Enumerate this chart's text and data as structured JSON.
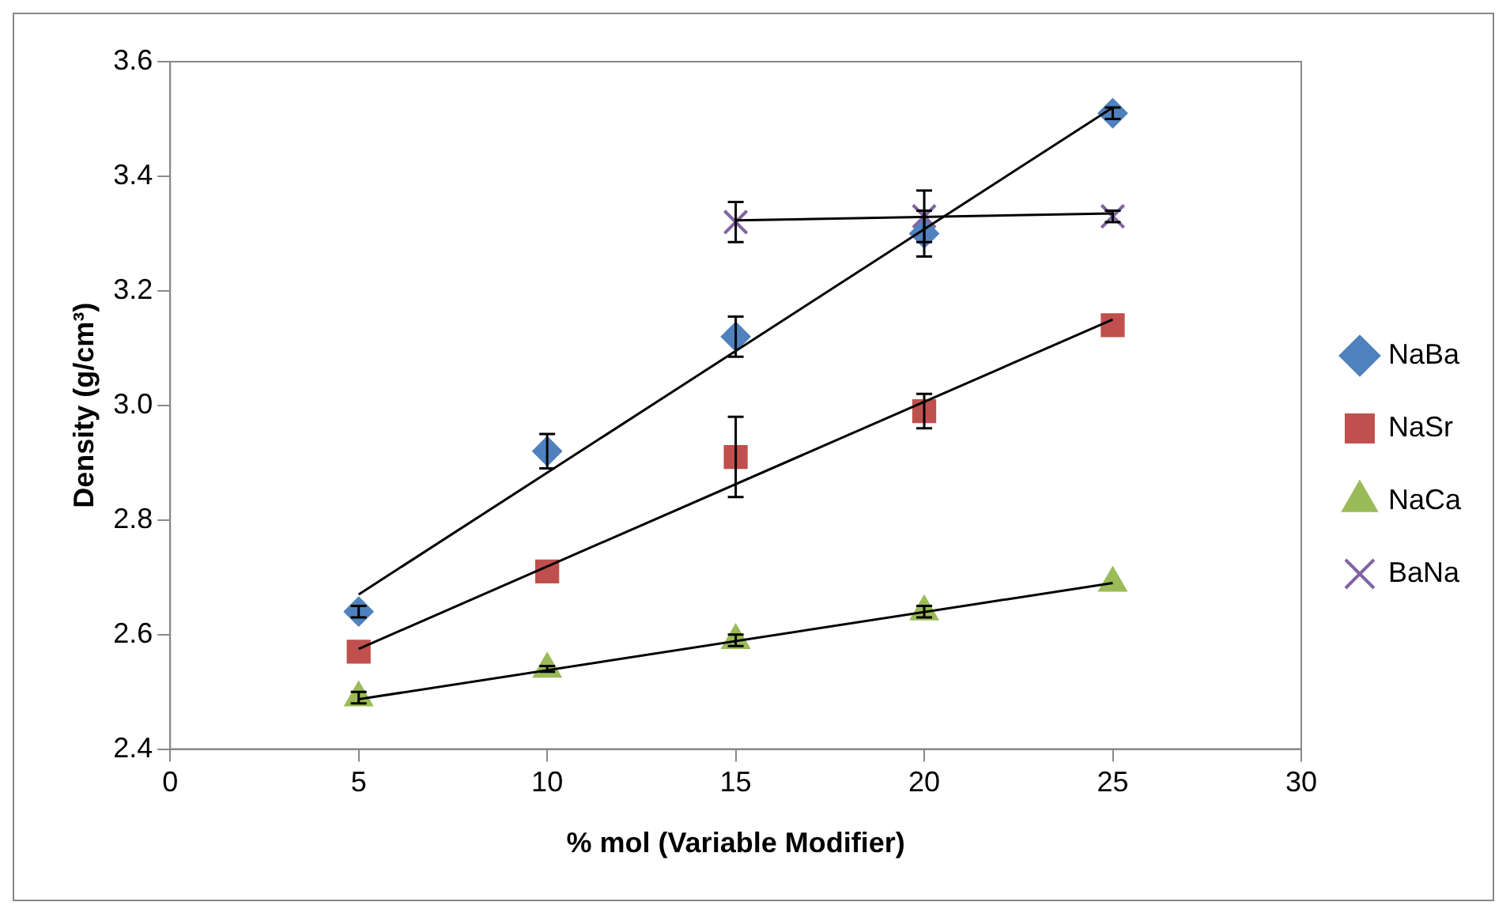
{
  "chart_data": {
    "type": "scatter",
    "xlabel": "% mol (Variable Modifier)",
    "ylabel": "Density (g/cm³)",
    "xlim": [
      0,
      30
    ],
    "xticks": [
      0,
      5,
      10,
      15,
      20,
      25,
      30
    ],
    "ylim": [
      2.4,
      3.6
    ],
    "yticks": [
      {
        "value": 2.4,
        "label": "2.4"
      },
      {
        "value": 2.6,
        "label": "2.6"
      },
      {
        "value": 2.8,
        "label": "2.8"
      },
      {
        "value": 3.0,
        "label": "3.0"
      },
      {
        "value": 3.2,
        "label": "3.2"
      },
      {
        "value": 3.4,
        "label": "3.4"
      },
      {
        "value": 3.6,
        "label": "3.6"
      }
    ],
    "grid": false,
    "legend": "right",
    "x": [
      5,
      10,
      15,
      20,
      25
    ],
    "series": [
      {
        "name": "NaBa",
        "color": "#4f81bd",
        "marker": "diamond",
        "values": [
          2.64,
          2.92,
          3.12,
          3.3,
          3.51
        ],
        "errors": [
          0.01,
          0.03,
          0.035,
          0.04,
          0.01
        ]
      },
      {
        "name": "NaSr",
        "color": "#c0504d",
        "marker": "square",
        "values": [
          2.57,
          2.71,
          2.91,
          2.99,
          3.14
        ],
        "errors": [
          null,
          null,
          0.07,
          0.03,
          null
        ]
      },
      {
        "name": "NaCa",
        "color": "#9bbb59",
        "marker": "triangle",
        "values": [
          2.49,
          2.54,
          2.59,
          2.64,
          2.69
        ],
        "errors": [
          0.01,
          0.005,
          0.01,
          0.01,
          null
        ]
      },
      {
        "name": "BaNa",
        "color": "#8064a2",
        "marker": "cross",
        "x": [
          15,
          20,
          25
        ],
        "values": [
          3.32,
          3.33,
          3.33
        ],
        "errors": [
          0.035,
          0.045,
          0.01
        ]
      },
      {
        "type": "line",
        "color": "#000000",
        "x": [
          5,
          25
        ],
        "values": [
          2.67,
          3.52
        ]
      },
      {
        "type": "line",
        "color": "#000000",
        "x": [
          5,
          25
        ],
        "values": [
          2.575,
          3.15
        ]
      },
      {
        "type": "line",
        "color": "#000000",
        "x": [
          5,
          25
        ],
        "values": [
          2.487,
          2.69
        ]
      },
      {
        "type": "line",
        "color": "#000000",
        "x": [
          15,
          25
        ],
        "values": [
          3.323,
          3.335
        ]
      }
    ]
  }
}
